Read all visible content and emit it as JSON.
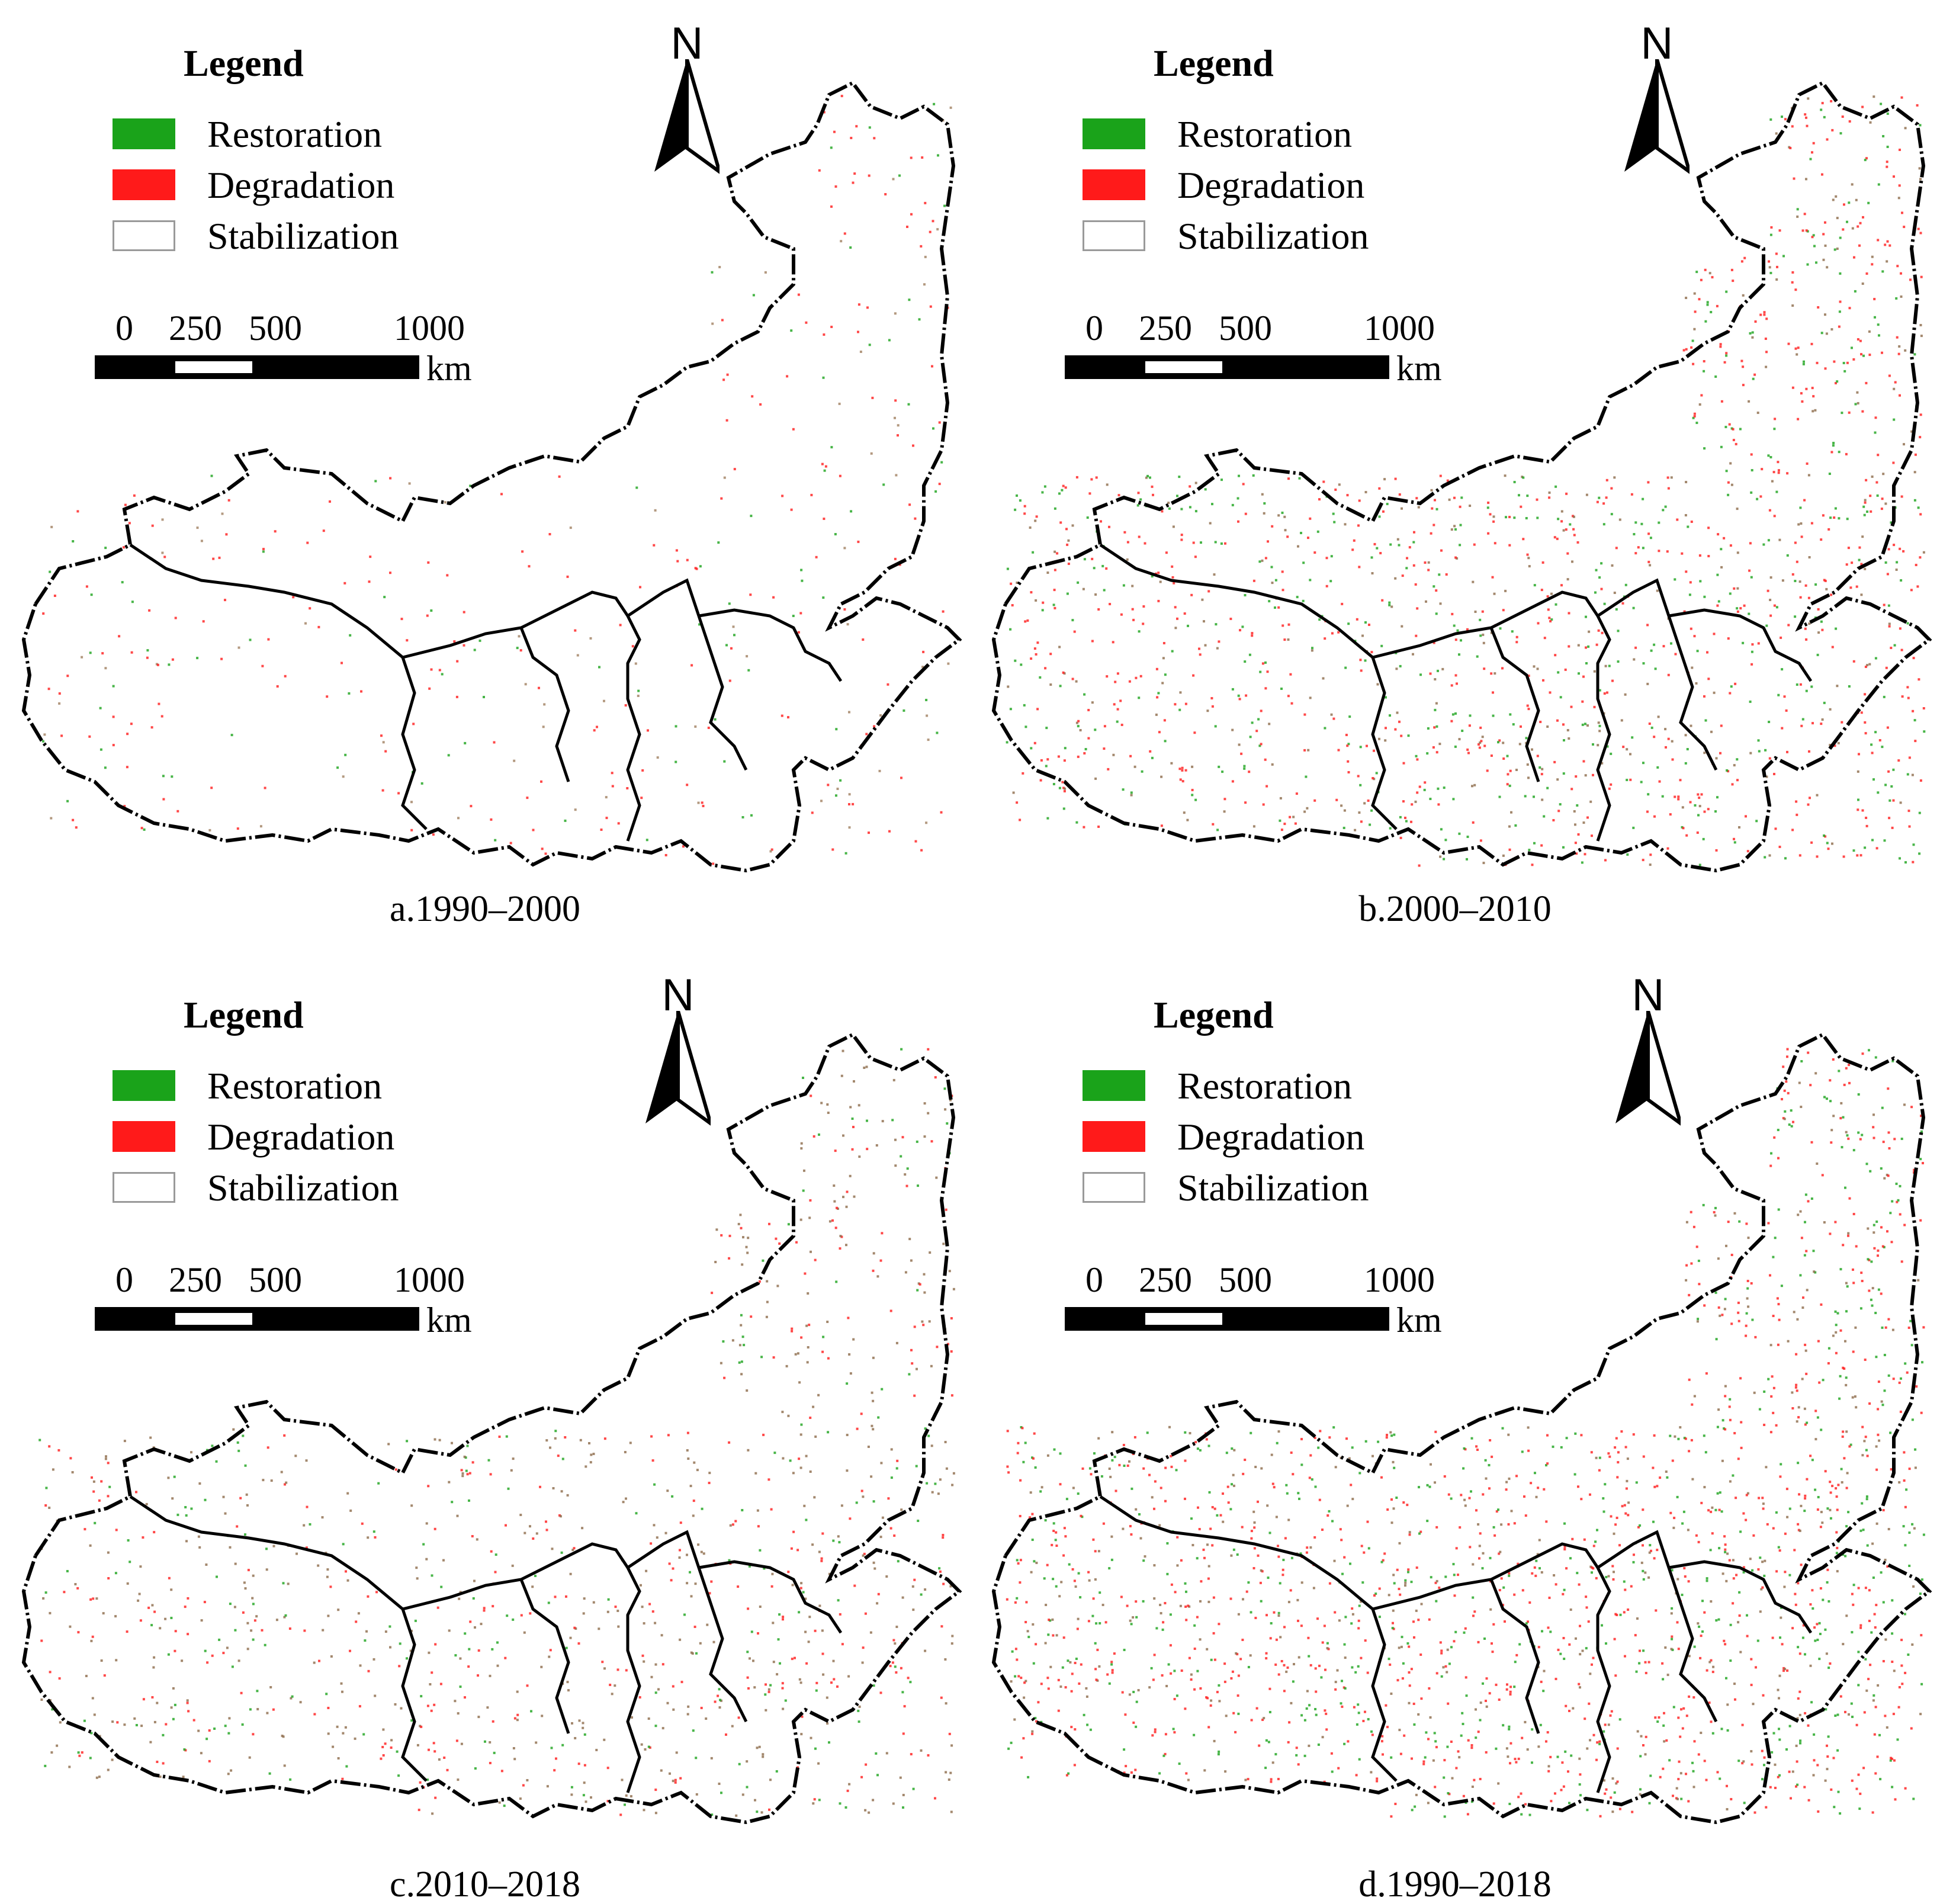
{
  "legend": {
    "title": "Legend",
    "items": [
      {
        "label": "Restoration",
        "color": "#1aa31a"
      },
      {
        "label": "Degradation",
        "color": "#ff1a1a"
      },
      {
        "label": "Stabilization",
        "color": "#ffffff"
      }
    ]
  },
  "scale": {
    "ticks": [
      "0",
      "250",
      "500",
      "1000"
    ],
    "unit": "km"
  },
  "north_label": "N",
  "panels": [
    {
      "caption": "a.1990–2000"
    },
    {
      "caption": "b.2000–2010"
    },
    {
      "caption": "c.2010–2018"
    },
    {
      "caption": "d.1990–2018"
    }
  ]
}
